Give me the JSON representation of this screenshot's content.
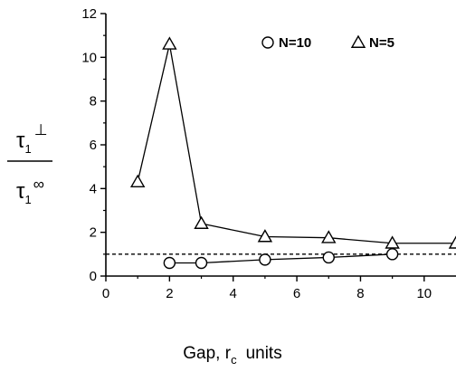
{
  "chart_data": {
    "type": "line",
    "title": "",
    "xlabel": {
      "main": "Gap, r",
      "sub": "c",
      "tail": "units"
    },
    "ylabel": {
      "numerator": {
        "base": "τ",
        "sub": "1",
        "sup": "⊥"
      },
      "denominator": {
        "base": "τ",
        "sub": "1",
        "sup": "∞"
      }
    },
    "xlim": [
      0,
      11
    ],
    "ylim": [
      0,
      12
    ],
    "xticks": [
      "0",
      "2",
      "4",
      "6",
      "8",
      "10"
    ],
    "yticks": [
      "0",
      "2",
      "4",
      "6",
      "8",
      "10",
      "12"
    ],
    "grid": false,
    "legend_position": "top-right",
    "reference_line": {
      "y": 1,
      "style": "dashed"
    },
    "series": [
      {
        "name": "N=10",
        "marker": "circle",
        "x": [
          2,
          3,
          5,
          7,
          9
        ],
        "y": [
          0.6,
          0.6,
          0.75,
          0.85,
          1.0
        ]
      },
      {
        "name": "N=5",
        "marker": "triangle",
        "x": [
          1,
          2,
          3,
          5,
          7,
          9,
          11
        ],
        "y": [
          4.3,
          10.6,
          2.4,
          1.8,
          1.75,
          1.5,
          1.5
        ]
      }
    ]
  }
}
